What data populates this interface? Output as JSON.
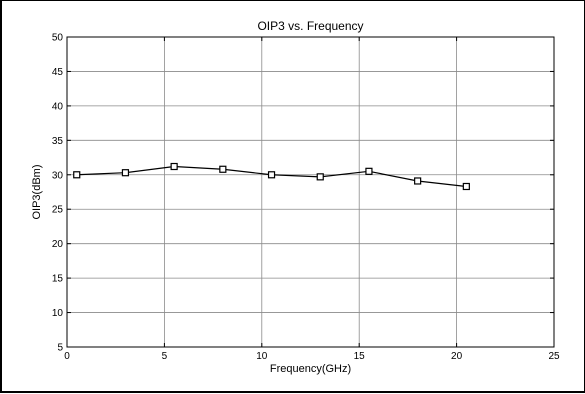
{
  "chart_data": {
    "type": "line",
    "title": "OIP3 vs. Frequency",
    "xlabel": "Frequency(GHz)",
    "ylabel": "OIP3(dBm)",
    "xlim": [
      0,
      25
    ],
    "ylim": [
      5,
      50
    ],
    "xticks": [
      0,
      5,
      10,
      15,
      20,
      25
    ],
    "yticks": [
      5,
      10,
      15,
      20,
      25,
      30,
      35,
      40,
      45,
      50
    ],
    "grid": true,
    "marker": "square",
    "series": [
      {
        "x": [
          0.5,
          3,
          5.5,
          8,
          10.5,
          13,
          15.5,
          18,
          20.5
        ],
        "y": [
          30.0,
          30.3,
          31.2,
          30.8,
          30.0,
          29.7,
          30.5,
          29.1,
          28.3
        ]
      }
    ]
  }
}
